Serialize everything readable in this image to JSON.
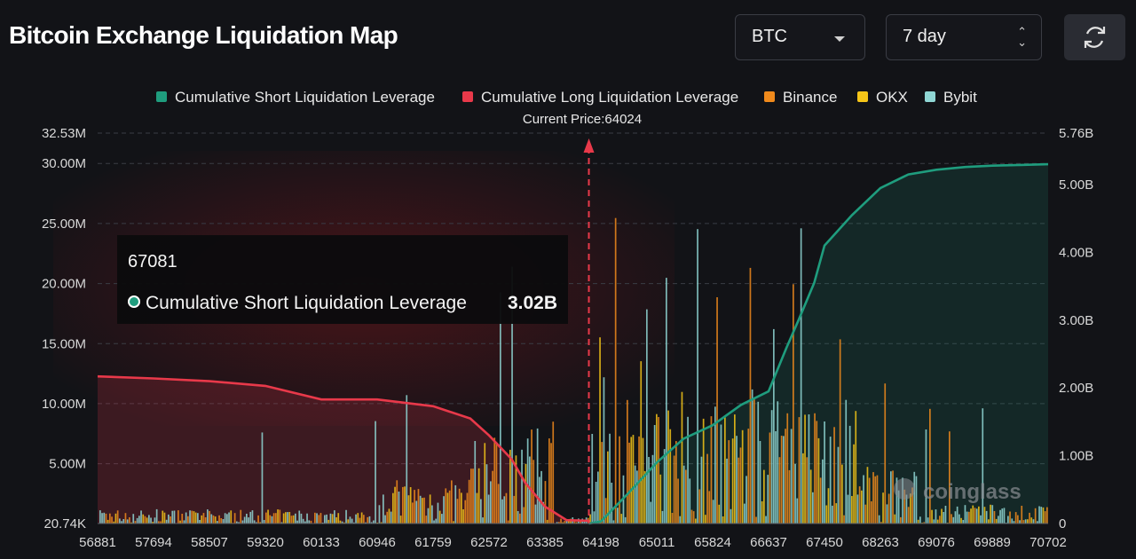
{
  "header": {
    "title": "Bitcoin Exchange Liquidation Map",
    "coin_select": "BTC",
    "range_select": "7 day"
  },
  "tooltip": {
    "price": "67081",
    "series": "Cumulative Short Liquidation Leverage",
    "value": "3.02B"
  },
  "watermark": "coinglass",
  "colors": {
    "short_cumulative": "#1f9d7e",
    "long_cumulative": "#e8394a",
    "binance": "#f08a1c",
    "okx": "#f5c518",
    "bybit": "#8fd6d4",
    "marker": "#e8394a"
  },
  "chart_data": {
    "type": "bar",
    "current_price_label": "Current Price:64024",
    "current_price": 64024,
    "legend": [
      {
        "name": "Cumulative Short Liquidation Leverage",
        "color": "#1f9d7e"
      },
      {
        "name": "Cumulative Long Liquidation Leverage",
        "color": "#e8394a"
      },
      {
        "name": "Binance",
        "color": "#f08a1c"
      },
      {
        "name": "OKX",
        "color": "#f5c518"
      },
      {
        "name": "Bybit",
        "color": "#8fd6d4"
      }
    ],
    "legend_position": "top",
    "x_ticks": [
      "56881",
      "57694",
      "58507",
      "59320",
      "60133",
      "60946",
      "61759",
      "62572",
      "63385",
      "64198",
      "65011",
      "65824",
      "66637",
      "67450",
      "68263",
      "69076",
      "69889",
      "70702"
    ],
    "xlim": [
      56881,
      70702
    ],
    "left_axis_ticks": [
      "32.53M",
      "30.00M",
      "25.00M",
      "20.00M",
      "15.00M",
      "10.00M",
      "5.00M",
      "20.74K"
    ],
    "left_axis_values": [
      32530000,
      30000000,
      25000000,
      20000000,
      15000000,
      10000000,
      5000000,
      20740
    ],
    "right_axis_ticks": [
      "5.76B",
      "5.00B",
      "4.00B",
      "3.00B",
      "2.00B",
      "1.00B",
      "0"
    ],
    "right_axis_values": [
      5760000000,
      5000000000,
      4000000000,
      3000000000,
      2000000000,
      1000000000,
      0
    ],
    "grid": true,
    "series": [
      {
        "name": "Cumulative Long Liquidation Leverage",
        "axis": "right",
        "x": [
          56881,
          57694,
          58507,
          59320,
          60133,
          60946,
          61759,
          62300,
          62572,
          62900,
          63100,
          63385,
          63700,
          64024
        ],
        "y": [
          2170000000.0,
          2140000000.0,
          2100000000.0,
          2030000000.0,
          1830000000.0,
          1830000000.0,
          1730000000.0,
          1550000000.0,
          1300000000.0,
          950000000.0,
          600000000.0,
          250000000.0,
          50000000.0,
          40000000.0
        ]
      },
      {
        "name": "Cumulative Short Liquidation Leverage",
        "axis": "right",
        "x": [
          64024,
          64198,
          64600,
          65011,
          65400,
          65824,
          66237,
          66637,
          66900,
          67081,
          67300,
          67450,
          67850,
          68263,
          68670,
          69076,
          69500,
          69889,
          70300,
          70702
        ],
        "y": [
          0,
          30000000.0,
          450000000.0,
          900000000.0,
          1250000000.0,
          1450000000.0,
          1750000000.0,
          1950000000.0,
          2600000000.0,
          3020000000.0,
          3550000000.0,
          4100000000.0,
          4550000000.0,
          4950000000.0,
          5150000000.0,
          5220000000.0,
          5260000000.0,
          5280000000.0,
          5290000000.0,
          5300000000.0
        ]
      }
    ],
    "bars": {
      "axis": "left",
      "exchanges": [
        "Binance",
        "OKX",
        "Bybit"
      ],
      "note": "dense per-price liquidation leverage bars"
    }
  }
}
